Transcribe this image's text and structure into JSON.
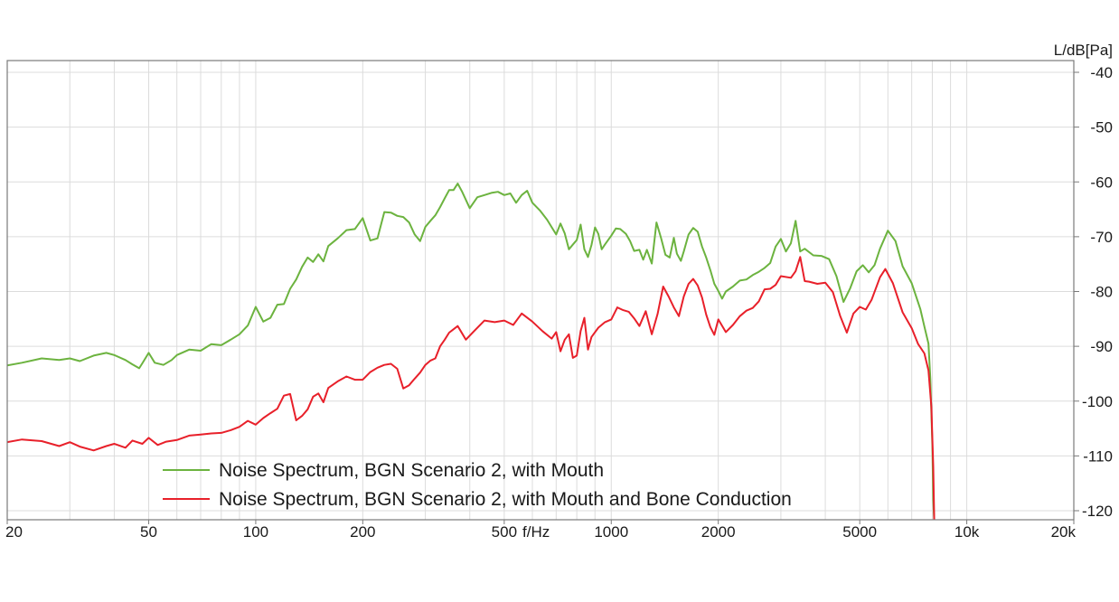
{
  "chart_data": {
    "type": "line",
    "title": "",
    "xlabel": "f/Hz",
    "ylabel": "L/dB[Pa]",
    "xscale": "log",
    "xlim": [
      20,
      20000
    ],
    "ylim": [
      -120,
      -40
    ],
    "grid": true,
    "legend_position": "bottom-center",
    "x_ticks": [
      {
        "value": 20,
        "label": "20"
      },
      {
        "value": 50,
        "label": "50"
      },
      {
        "value": 100,
        "label": "100"
      },
      {
        "value": 200,
        "label": "200"
      },
      {
        "value": 500,
        "label": "500"
      },
      {
        "value": 1000,
        "label": "1000"
      },
      {
        "value": 2000,
        "label": "2000"
      },
      {
        "value": 5000,
        "label": "5000"
      },
      {
        "value": 10000,
        "label": "10k"
      },
      {
        "value": 20000,
        "label": "20k"
      }
    ],
    "y_ticks": [
      {
        "value": -40,
        "label": "-40"
      },
      {
        "value": -50,
        "label": "-50"
      },
      {
        "value": -60,
        "label": "-60"
      },
      {
        "value": -70,
        "label": "-70"
      },
      {
        "value": -80,
        "label": "-80"
      },
      {
        "value": -90,
        "label": "-90"
      },
      {
        "value": -100,
        "label": "-100"
      },
      {
        "value": -110,
        "label": "-110"
      },
      {
        "value": -120,
        "label": "-120"
      }
    ],
    "series": [
      {
        "name": "Noise Spectrum, BGN Scenario 2, with Mouth",
        "color": "#6cb33f",
        "points": [
          [
            20,
            -93.5
          ],
          [
            22,
            -93
          ],
          [
            25,
            -92.2
          ],
          [
            28,
            -92.5
          ],
          [
            30,
            -92.2
          ],
          [
            32,
            -92.7
          ],
          [
            35,
            -91.7
          ],
          [
            38,
            -91.2
          ],
          [
            40,
            -91.6
          ],
          [
            43,
            -92.5
          ],
          [
            45,
            -93.3
          ],
          [
            47,
            -94
          ],
          [
            48,
            -93.1
          ],
          [
            50,
            -91.2
          ],
          [
            52,
            -93
          ],
          [
            55,
            -93.4
          ],
          [
            58,
            -92.5
          ],
          [
            60,
            -91.6
          ],
          [
            65,
            -90.6
          ],
          [
            70,
            -90.8
          ],
          [
            75,
            -89.6
          ],
          [
            80,
            -89.8
          ],
          [
            85,
            -88.8
          ],
          [
            90,
            -87.8
          ],
          [
            95,
            -86.2
          ],
          [
            100,
            -82.8
          ],
          [
            105,
            -85.5
          ],
          [
            110,
            -84.8
          ],
          [
            115,
            -82.4
          ],
          [
            120,
            -82.3
          ],
          [
            125,
            -79.5
          ],
          [
            130,
            -77.8
          ],
          [
            135,
            -75.5
          ],
          [
            140,
            -73.8
          ],
          [
            145,
            -74.6
          ],
          [
            150,
            -73.2
          ],
          [
            155,
            -74.5
          ],
          [
            160,
            -71.7
          ],
          [
            170,
            -70.3
          ],
          [
            180,
            -68.8
          ],
          [
            190,
            -68.6
          ],
          [
            200,
            -66.6
          ],
          [
            210,
            -70.7
          ],
          [
            220,
            -70.3
          ],
          [
            230,
            -65.5
          ],
          [
            240,
            -65.6
          ],
          [
            250,
            -66.2
          ],
          [
            260,
            -66.4
          ],
          [
            270,
            -67.4
          ],
          [
            280,
            -69.6
          ],
          [
            290,
            -70.8
          ],
          [
            300,
            -68.2
          ],
          [
            310,
            -67.1
          ],
          [
            320,
            -66.1
          ],
          [
            330,
            -64.6
          ],
          [
            340,
            -63
          ],
          [
            350,
            -61.5
          ],
          [
            360,
            -61.5
          ],
          [
            370,
            -60.3
          ],
          [
            380,
            -61.7
          ],
          [
            400,
            -64.8
          ],
          [
            420,
            -62.8
          ],
          [
            440,
            -62.4
          ],
          [
            460,
            -62
          ],
          [
            480,
            -61.8
          ],
          [
            500,
            -62.4
          ],
          [
            520,
            -62.1
          ],
          [
            540,
            -63.8
          ],
          [
            560,
            -62.4
          ],
          [
            580,
            -61.6
          ],
          [
            600,
            -63.8
          ],
          [
            630,
            -65.2
          ],
          [
            660,
            -66.9
          ],
          [
            700,
            -69.6
          ],
          [
            720,
            -67.6
          ],
          [
            740,
            -69.4
          ],
          [
            760,
            -72.3
          ],
          [
            800,
            -70.6
          ],
          [
            820,
            -67.8
          ],
          [
            840,
            -72.3
          ],
          [
            860,
            -73.7
          ],
          [
            880,
            -71.5
          ],
          [
            900,
            -68.3
          ],
          [
            920,
            -69.5
          ],
          [
            940,
            -72.3
          ],
          [
            960,
            -71.4
          ],
          [
            1000,
            -69.8
          ],
          [
            1030,
            -68.5
          ],
          [
            1060,
            -68.6
          ],
          [
            1100,
            -69.5
          ],
          [
            1130,
            -70.8
          ],
          [
            1160,
            -72.6
          ],
          [
            1200,
            -72.4
          ],
          [
            1230,
            -74.2
          ],
          [
            1260,
            -72.4
          ],
          [
            1300,
            -74.9
          ],
          [
            1340,
            -67.4
          ],
          [
            1380,
            -70.2
          ],
          [
            1420,
            -73.3
          ],
          [
            1460,
            -73.8
          ],
          [
            1500,
            -70.2
          ],
          [
            1530,
            -73.1
          ],
          [
            1570,
            -74.4
          ],
          [
            1600,
            -72.7
          ],
          [
            1650,
            -69.6
          ],
          [
            1700,
            -68.4
          ],
          [
            1750,
            -69.1
          ],
          [
            1800,
            -71.8
          ],
          [
            1850,
            -73.8
          ],
          [
            1900,
            -76.1
          ],
          [
            1950,
            -78.6
          ],
          [
            2000,
            -79.9
          ],
          [
            2050,
            -81.3
          ],
          [
            2100,
            -80
          ],
          [
            2200,
            -79.1
          ],
          [
            2300,
            -78
          ],
          [
            2400,
            -77.8
          ],
          [
            2500,
            -77
          ],
          [
            2600,
            -76.4
          ],
          [
            2700,
            -75.7
          ],
          [
            2800,
            -74.8
          ],
          [
            2900,
            -71.8
          ],
          [
            3000,
            -70.4
          ],
          [
            3100,
            -72.7
          ],
          [
            3200,
            -71.2
          ],
          [
            3300,
            -67.1
          ],
          [
            3400,
            -72.7
          ],
          [
            3500,
            -72.2
          ],
          [
            3700,
            -73.4
          ],
          [
            3900,
            -73.5
          ],
          [
            4100,
            -74.1
          ],
          [
            4300,
            -77.2
          ],
          [
            4500,
            -81.9
          ],
          [
            4700,
            -79.4
          ],
          [
            4900,
            -76.3
          ],
          [
            5100,
            -75.2
          ],
          [
            5300,
            -76.5
          ],
          [
            5500,
            -75.2
          ],
          [
            5700,
            -72.2
          ],
          [
            6000,
            -68.9
          ],
          [
            6300,
            -70.8
          ],
          [
            6600,
            -75.4
          ],
          [
            7000,
            -78.5
          ],
          [
            7400,
            -83.2
          ],
          [
            7600,
            -86.4
          ],
          [
            7800,
            -89.5
          ],
          [
            7900,
            -96
          ],
          [
            8000,
            -108
          ],
          [
            8050,
            -118
          ],
          [
            8100,
            -122
          ]
        ]
      },
      {
        "name": "Noise Spectrum, BGN Scenario 2, with Mouth and Bone Conduction",
        "color": "#e8202a",
        "points": [
          [
            20,
            -107.5
          ],
          [
            22,
            -107
          ],
          [
            25,
            -107.3
          ],
          [
            28,
            -108.2
          ],
          [
            30,
            -107.5
          ],
          [
            32,
            -108.3
          ],
          [
            35,
            -109
          ],
          [
            38,
            -108.2
          ],
          [
            40,
            -107.8
          ],
          [
            43,
            -108.5
          ],
          [
            45,
            -107.2
          ],
          [
            48,
            -107.8
          ],
          [
            50,
            -106.7
          ],
          [
            53,
            -108
          ],
          [
            56,
            -107.4
          ],
          [
            60,
            -107.1
          ],
          [
            65,
            -106.3
          ],
          [
            70,
            -106.1
          ],
          [
            75,
            -105.9
          ],
          [
            80,
            -105.8
          ],
          [
            85,
            -105.3
          ],
          [
            90,
            -104.7
          ],
          [
            95,
            -103.6
          ],
          [
            100,
            -104.3
          ],
          [
            105,
            -103.1
          ],
          [
            110,
            -102.2
          ],
          [
            115,
            -101.4
          ],
          [
            120,
            -99
          ],
          [
            125,
            -98.7
          ],
          [
            130,
            -103.5
          ],
          [
            135,
            -102.7
          ],
          [
            140,
            -101.5
          ],
          [
            145,
            -99.2
          ],
          [
            150,
            -98.6
          ],
          [
            155,
            -100.2
          ],
          [
            160,
            -97.6
          ],
          [
            170,
            -96.4
          ],
          [
            180,
            -95.5
          ],
          [
            190,
            -96.1
          ],
          [
            200,
            -96.1
          ],
          [
            210,
            -94.7
          ],
          [
            220,
            -93.9
          ],
          [
            230,
            -93.4
          ],
          [
            240,
            -93.2
          ],
          [
            250,
            -94.1
          ],
          [
            260,
            -97.7
          ],
          [
            270,
            -97.1
          ],
          [
            280,
            -95.9
          ],
          [
            290,
            -94.8
          ],
          [
            300,
            -93.4
          ],
          [
            310,
            -92.6
          ],
          [
            320,
            -92.2
          ],
          [
            330,
            -90
          ],
          [
            340,
            -88.8
          ],
          [
            350,
            -87.5
          ],
          [
            360,
            -86.9
          ],
          [
            370,
            -86.3
          ],
          [
            390,
            -88.8
          ],
          [
            410,
            -87.3
          ],
          [
            440,
            -85.3
          ],
          [
            470,
            -85.6
          ],
          [
            500,
            -85.3
          ],
          [
            530,
            -86.1
          ],
          [
            560,
            -84
          ],
          [
            600,
            -85.5
          ],
          [
            640,
            -87.2
          ],
          [
            680,
            -88.6
          ],
          [
            700,
            -87.4
          ],
          [
            720,
            -90.9
          ],
          [
            740,
            -88.8
          ],
          [
            760,
            -87.8
          ],
          [
            780,
            -92.1
          ],
          [
            800,
            -91.7
          ],
          [
            820,
            -87.2
          ],
          [
            840,
            -84.8
          ],
          [
            860,
            -90.6
          ],
          [
            880,
            -88.3
          ],
          [
            920,
            -86.6
          ],
          [
            960,
            -85.6
          ],
          [
            1000,
            -85.1
          ],
          [
            1040,
            -82.9
          ],
          [
            1080,
            -83.4
          ],
          [
            1120,
            -83.7
          ],
          [
            1160,
            -84.9
          ],
          [
            1200,
            -86.3
          ],
          [
            1250,
            -83.6
          ],
          [
            1300,
            -87.8
          ],
          [
            1350,
            -84.1
          ],
          [
            1400,
            -79.1
          ],
          [
            1450,
            -80.9
          ],
          [
            1500,
            -82.9
          ],
          [
            1550,
            -84.5
          ],
          [
            1600,
            -80.9
          ],
          [
            1650,
            -78.6
          ],
          [
            1700,
            -77.7
          ],
          [
            1750,
            -78.9
          ],
          [
            1800,
            -81.1
          ],
          [
            1850,
            -84.2
          ],
          [
            1900,
            -86.5
          ],
          [
            1950,
            -87.9
          ],
          [
            2000,
            -85.1
          ],
          [
            2100,
            -87.4
          ],
          [
            2200,
            -86.1
          ],
          [
            2300,
            -84.5
          ],
          [
            2400,
            -83.5
          ],
          [
            2500,
            -83
          ],
          [
            2600,
            -81.8
          ],
          [
            2700,
            -79.6
          ],
          [
            2800,
            -79.5
          ],
          [
            2900,
            -78.8
          ],
          [
            3000,
            -77.2
          ],
          [
            3200,
            -77.5
          ],
          [
            3300,
            -76.3
          ],
          [
            3400,
            -73.7
          ],
          [
            3500,
            -78.1
          ],
          [
            3600,
            -78.2
          ],
          [
            3800,
            -78.6
          ],
          [
            4000,
            -78.4
          ],
          [
            4200,
            -80.1
          ],
          [
            4400,
            -84.4
          ],
          [
            4600,
            -87.5
          ],
          [
            4800,
            -84
          ],
          [
            5000,
            -82.8
          ],
          [
            5200,
            -83.3
          ],
          [
            5400,
            -81.5
          ],
          [
            5700,
            -77.4
          ],
          [
            5900,
            -75.9
          ],
          [
            6200,
            -78.5
          ],
          [
            6600,
            -83.8
          ],
          [
            7000,
            -86.7
          ],
          [
            7300,
            -89.6
          ],
          [
            7600,
            -91.3
          ],
          [
            7800,
            -94.4
          ],
          [
            7950,
            -101
          ],
          [
            8050,
            -112
          ],
          [
            8100,
            -122
          ]
        ]
      }
    ]
  }
}
